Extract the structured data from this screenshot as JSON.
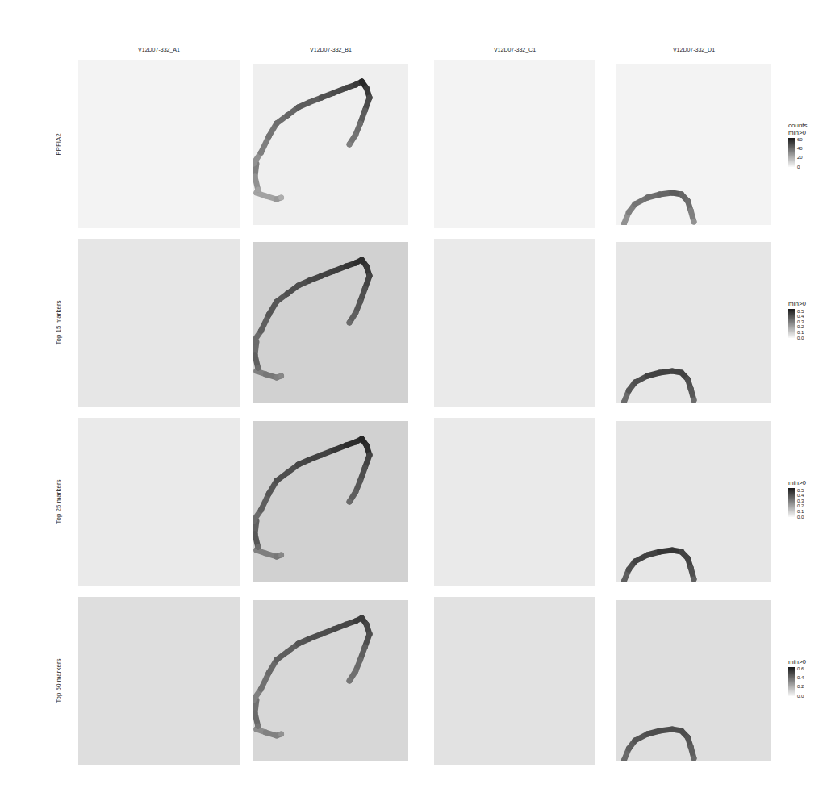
{
  "chart_data": {
    "type": "scatter",
    "xlim": [
      0,
      100
    ],
    "ylim": [
      0,
      100
    ],
    "tick_labels": false,
    "columns": [
      "V12D07-332_A1",
      "V12D07-332_B1",
      "V12D07-332_C1",
      "V12D07-332_D1"
    ],
    "rows": [
      {
        "label": "PPFIA2",
        "colorbar": {
          "title": "counts\nmin>0",
          "range": [
            0,
            64
          ],
          "ticks": [
            0,
            20,
            40,
            60
          ]
        },
        "panels": [
          {
            "background": 2,
            "segments": []
          },
          {
            "background": 3,
            "segments": [
              {
                "x": [
                  0,
                  5,
                  10,
                  15,
                  22,
                  29,
                  36,
                  44,
                  52,
                  60,
                  66,
                  70,
                  73,
                  75,
                  72,
                  69,
                  66,
                  62
                ],
                "y": [
                  38,
                  45,
                  55,
                  63,
                  68,
                  73,
                  76,
                  79,
                  82,
                  85,
                  87,
                  89,
                  85,
                  79,
                  71,
                  63,
                  56,
                  50
                ],
                "values": [
                  30,
                  35,
                  38,
                  40,
                  42,
                  45,
                  45,
                  48,
                  50,
                  52,
                  55,
                  60,
                  55,
                  50,
                  45,
                  40,
                  38,
                  35
                ]
              },
              {
                "x": [
                  2,
                  1,
                  3
                ],
                "y": [
                  38,
                  30,
                  22
                ],
                "values": [
                  35,
                  30,
                  25
                ]
              },
              {
                "x": [
                  2,
                  8,
                  15,
                  18
                ],
                "y": [
                  20,
                  18,
                  16,
                  17
                ],
                "values": [
                  25,
                  25,
                  28,
                  22
                ]
              }
            ]
          },
          {
            "background": 2,
            "segments": []
          },
          {
            "background": 2,
            "segments": [
              {
                "x": [
                  5,
                  8,
                  12,
                  20,
                  28,
                  36,
                  42,
                  46,
                  48,
                  50
                ],
                "y": [
                  1,
                  8,
                  13,
                  17,
                  19,
                  20,
                  19,
                  15,
                  9,
                  2
                ],
                "values": [
                  30,
                  35,
                  38,
                  40,
                  42,
                  45,
                  42,
                  40,
                  35,
                  30
                ]
              }
            ]
          }
        ]
      },
      {
        "label": "Top 15 markers",
        "colorbar": {
          "title": "min>0",
          "range": [
            0,
            0.55
          ],
          "ticks": [
            {
              "value": 0,
              "label": "0.0"
            },
            0.1,
            0.2,
            0.3,
            0.4,
            0.5
          ]
        },
        "panels": [
          {
            "background": 0.05,
            "segments": []
          },
          {
            "background": 0.1,
            "segments": [
              {
                "x": [
                  0,
                  5,
                  10,
                  15,
                  22,
                  29,
                  36,
                  44,
                  52,
                  60,
                  66,
                  70,
                  73,
                  75,
                  72,
                  69,
                  66,
                  62
                ],
                "y": [
                  38,
                  45,
                  55,
                  63,
                  68,
                  73,
                  76,
                  79,
                  82,
                  85,
                  87,
                  89,
                  85,
                  79,
                  71,
                  63,
                  56,
                  50
                ],
                "values": [
                  0.35,
                  0.38,
                  0.4,
                  0.4,
                  0.42,
                  0.42,
                  0.44,
                  0.45,
                  0.46,
                  0.48,
                  0.5,
                  0.5,
                  0.48,
                  0.45,
                  0.42,
                  0.4,
                  0.38,
                  0.35
                ]
              },
              {
                "x": [
                  2,
                  1,
                  3
                ],
                "y": [
                  38,
                  30,
                  22
                ],
                "values": [
                  0.35,
                  0.38,
                  0.35
                ]
              },
              {
                "x": [
                  2,
                  8,
                  15,
                  18
                ],
                "y": [
                  20,
                  18,
                  16,
                  17
                ],
                "values": [
                  0.3,
                  0.32,
                  0.3,
                  0.28
                ]
              }
            ]
          },
          {
            "background": 0.04,
            "segments": []
          },
          {
            "background": 0.05,
            "segments": [
              {
                "x": [
                  5,
                  8,
                  12,
                  20,
                  28,
                  36,
                  42,
                  46,
                  48,
                  50
                ],
                "y": [
                  1,
                  8,
                  13,
                  17,
                  19,
                  20,
                  19,
                  15,
                  9,
                  2
                ],
                "values": [
                  0.35,
                  0.4,
                  0.42,
                  0.45,
                  0.45,
                  0.45,
                  0.45,
                  0.42,
                  0.4,
                  0.35
                ]
              }
            ]
          }
        ]
      },
      {
        "label": "Top 25 markers",
        "colorbar": {
          "title": "min>0",
          "range": [
            0,
            0.55
          ],
          "ticks": [
            {
              "value": 0,
              "label": "0.0"
            },
            0.1,
            0.2,
            0.3,
            0.4,
            0.5
          ]
        },
        "panels": [
          {
            "background": 0.04,
            "segments": []
          },
          {
            "background": 0.1,
            "segments": [
              {
                "x": [
                  0,
                  5,
                  10,
                  15,
                  22,
                  29,
                  36,
                  44,
                  52,
                  60,
                  66,
                  70,
                  73,
                  75,
                  72,
                  69,
                  66,
                  62
                ],
                "y": [
                  38,
                  45,
                  55,
                  63,
                  68,
                  73,
                  76,
                  79,
                  82,
                  85,
                  87,
                  89,
                  85,
                  79,
                  71,
                  63,
                  56,
                  50
                ],
                "values": [
                  0.35,
                  0.38,
                  0.4,
                  0.42,
                  0.42,
                  0.44,
                  0.45,
                  0.45,
                  0.48,
                  0.5,
                  0.5,
                  0.52,
                  0.5,
                  0.45,
                  0.42,
                  0.4,
                  0.38,
                  0.35
                ]
              },
              {
                "x": [
                  2,
                  1,
                  3
                ],
                "y": [
                  38,
                  30,
                  22
                ],
                "values": [
                  0.38,
                  0.4,
                  0.35
                ]
              },
              {
                "x": [
                  2,
                  8,
                  15,
                  18
                ],
                "y": [
                  20,
                  18,
                  16,
                  17
                ],
                "values": [
                  0.3,
                  0.3,
                  0.32,
                  0.28
                ]
              }
            ]
          },
          {
            "background": 0.04,
            "segments": []
          },
          {
            "background": 0.05,
            "segments": [
              {
                "x": [
                  5,
                  8,
                  12,
                  20,
                  28,
                  36,
                  42,
                  46,
                  48,
                  50
                ],
                "y": [
                  1,
                  8,
                  13,
                  17,
                  19,
                  20,
                  19,
                  15,
                  9,
                  2
                ],
                "values": [
                  0.38,
                  0.42,
                  0.45,
                  0.45,
                  0.48,
                  0.48,
                  0.45,
                  0.45,
                  0.42,
                  0.38
                ]
              }
            ]
          }
        ]
      },
      {
        "label": "Top 50 markers",
        "colorbar": {
          "title": "min>0",
          "range": [
            0,
            0.65
          ],
          "ticks": [
            {
              "value": 0,
              "label": "0.0"
            },
            0.2,
            0.4,
            0.6
          ]
        },
        "panels": [
          {
            "background": 0.08,
            "segments": []
          },
          {
            "background": 0.1,
            "segments": [
              {
                "x": [
                  0,
                  5,
                  10,
                  15,
                  22,
                  29,
                  36,
                  44,
                  52,
                  60,
                  66,
                  70,
                  73,
                  75,
                  72,
                  69,
                  66,
                  62
                ],
                "y": [
                  38,
                  45,
                  55,
                  63,
                  68,
                  73,
                  76,
                  79,
                  82,
                  85,
                  87,
                  89,
                  85,
                  79,
                  71,
                  63,
                  56,
                  50
                ],
                "values": [
                  0.35,
                  0.4,
                  0.42,
                  0.45,
                  0.45,
                  0.48,
                  0.5,
                  0.5,
                  0.52,
                  0.52,
                  0.55,
                  0.55,
                  0.52,
                  0.5,
                  0.45,
                  0.42,
                  0.4,
                  0.38
                ]
              },
              {
                "x": [
                  2,
                  1,
                  3
                ],
                "y": [
                  38,
                  30,
                  22
                ],
                "values": [
                  0.4,
                  0.42,
                  0.38
                ]
              },
              {
                "x": [
                  2,
                  8,
                  15,
                  18
                ],
                "y": [
                  20,
                  18,
                  16,
                  17
                ],
                "values": [
                  0.32,
                  0.35,
                  0.35,
                  0.3
                ]
              }
            ]
          },
          {
            "background": 0.07,
            "segments": []
          },
          {
            "background": 0.08,
            "segments": [
              {
                "x": [
                  5,
                  8,
                  12,
                  20,
                  28,
                  36,
                  42,
                  46,
                  48,
                  50
                ],
                "y": [
                  1,
                  8,
                  13,
                  17,
                  19,
                  20,
                  19,
                  15,
                  9,
                  2
                ],
                "values": [
                  0.42,
                  0.45,
                  0.48,
                  0.5,
                  0.5,
                  0.5,
                  0.5,
                  0.48,
                  0.45,
                  0.42
                ]
              }
            ]
          }
        ]
      }
    ]
  }
}
